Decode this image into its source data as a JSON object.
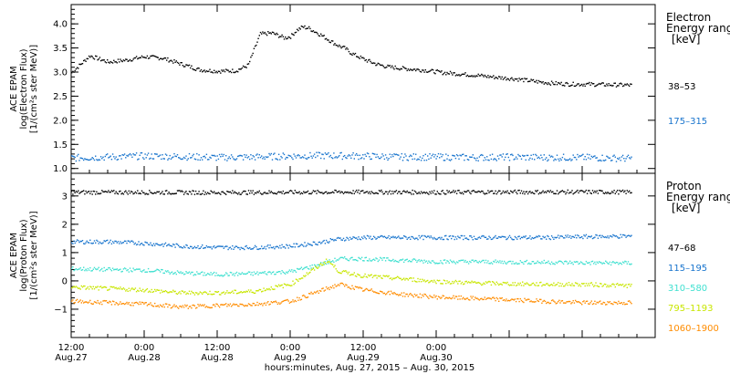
{
  "chart_data": [
    {
      "type": "scatter",
      "panel": "electron",
      "ylabel_lines": [
        "ACE EPAM",
        "log(Electron Flux)",
        "[1/(cm²s ster MeV)]"
      ],
      "ylim": [
        0.9,
        4.4
      ],
      "yticks": [
        1.0,
        1.5,
        2.0,
        2.5,
        3.0,
        3.5,
        4.0
      ],
      "ytick_labels": [
        "1.0",
        "1.5",
        "2.0",
        "2.5",
        "3.0",
        "3.5",
        "4.0"
      ],
      "legend_title_lines": [
        "Electron",
        "Energy range",
        "[keV]"
      ],
      "series": [
        {
          "name": "38–53",
          "color": "#000000",
          "x": [
            0,
            3,
            6,
            9,
            12,
            15,
            18,
            21,
            24,
            27,
            29,
            31,
            33,
            35,
            36,
            37,
            38,
            39,
            40,
            41,
            42,
            43,
            44,
            45,
            46,
            48,
            50,
            52,
            55,
            58,
            61,
            64,
            67,
            70,
            73,
            76,
            79,
            82,
            85,
            88,
            92
          ],
          "y": [
            3.0,
            3.35,
            3.22,
            3.26,
            3.33,
            3.3,
            3.18,
            3.06,
            3.03,
            3.04,
            3.15,
            3.8,
            3.82,
            3.72,
            3.75,
            3.88,
            3.95,
            3.92,
            3.85,
            3.78,
            3.7,
            3.62,
            3.55,
            3.5,
            3.4,
            3.28,
            3.18,
            3.12,
            3.08,
            3.05,
            3.0,
            2.97,
            2.94,
            2.9,
            2.87,
            2.82,
            2.78,
            2.76,
            2.76,
            2.75,
            2.74
          ]
        },
        {
          "name": "175–315",
          "color": "#1874cd",
          "x": [
            0,
            6,
            12,
            18,
            24,
            30,
            36,
            42,
            48,
            54,
            60,
            66,
            72,
            78,
            84,
            92
          ],
          "y": [
            1.23,
            1.25,
            1.27,
            1.26,
            1.24,
            1.25,
            1.27,
            1.28,
            1.27,
            1.25,
            1.25,
            1.24,
            1.25,
            1.24,
            1.24,
            1.22
          ]
        }
      ]
    },
    {
      "type": "scatter",
      "panel": "proton",
      "ylabel_lines": [
        "ACE EPAM",
        "log(Proton Flux)",
        "[1/(cm²s ster MeV)]"
      ],
      "ylim": [
        -2.0,
        3.8
      ],
      "yticks": [
        -1,
        0,
        1,
        2,
        3
      ],
      "ytick_labels": [
        "−1",
        "0",
        "1",
        "2",
        "3"
      ],
      "legend_title_lines": [
        "Proton",
        "Energy range",
        "[keV]"
      ],
      "series": [
        {
          "name": "47–68",
          "color": "#000000",
          "x": [
            0,
            12,
            24,
            36,
            48,
            60,
            72,
            84,
            92
          ],
          "y": [
            3.15,
            3.15,
            3.14,
            3.15,
            3.16,
            3.15,
            3.16,
            3.16,
            3.16
          ]
        },
        {
          "name": "115–195",
          "color": "#1874cd",
          "x": [
            0,
            6,
            12,
            18,
            24,
            30,
            36,
            40,
            44,
            48,
            54,
            60,
            66,
            72,
            78,
            84,
            92
          ],
          "y": [
            1.4,
            1.4,
            1.35,
            1.25,
            1.2,
            1.2,
            1.25,
            1.35,
            1.5,
            1.55,
            1.55,
            1.55,
            1.55,
            1.55,
            1.55,
            1.58,
            1.6
          ]
        },
        {
          "name": "310–580",
          "color": "#40e0d0",
          "x": [
            0,
            6,
            12,
            18,
            24,
            30,
            36,
            40,
            44,
            48,
            54,
            60,
            66,
            72,
            78,
            84,
            92
          ],
          "y": [
            0.45,
            0.42,
            0.4,
            0.3,
            0.25,
            0.28,
            0.35,
            0.55,
            0.8,
            0.8,
            0.75,
            0.7,
            0.7,
            0.68,
            0.68,
            0.66,
            0.65
          ]
        },
        {
          "name": "795–1193",
          "color": "#c8e600",
          "x": [
            0,
            6,
            12,
            18,
            24,
            30,
            36,
            40,
            42,
            44,
            48,
            54,
            60,
            66,
            72,
            78,
            84,
            92
          ],
          "y": [
            -0.2,
            -0.25,
            -0.3,
            -0.4,
            -0.4,
            -0.35,
            -0.1,
            0.45,
            0.75,
            0.35,
            0.2,
            0.1,
            0.0,
            -0.05,
            -0.08,
            -0.1,
            -0.1,
            -0.15
          ]
        },
        {
          "name": "1060–1900",
          "color": "#ff8c00",
          "x": [
            0,
            6,
            12,
            18,
            24,
            30,
            36,
            40,
            44,
            48,
            54,
            60,
            66,
            72,
            78,
            84,
            92
          ],
          "y": [
            -0.7,
            -0.75,
            -0.8,
            -0.9,
            -0.85,
            -0.8,
            -0.7,
            -0.4,
            -0.1,
            -0.3,
            -0.45,
            -0.55,
            -0.6,
            -0.65,
            -0.7,
            -0.75,
            -0.75
          ]
        }
      ]
    }
  ],
  "x_axis": {
    "xlim": [
      0,
      96
    ],
    "major_ticks": [
      0,
      12,
      24,
      36,
      48,
      60,
      72,
      84
    ],
    "tick_time_labels": [
      "12:00",
      "0:00",
      "12:00",
      "0:00",
      "12:00",
      "0:00"
    ],
    "tick_date_labels": [
      "Aug.27",
      "Aug.28",
      "Aug.28",
      "Aug.29",
      "Aug.29",
      "Aug.30"
    ],
    "labelled_ticks": [
      0,
      12,
      24,
      36,
      48,
      60
    ],
    "xlabel": "hours:minutes, Aug. 27, 2015 – Aug. 30, 2015"
  }
}
